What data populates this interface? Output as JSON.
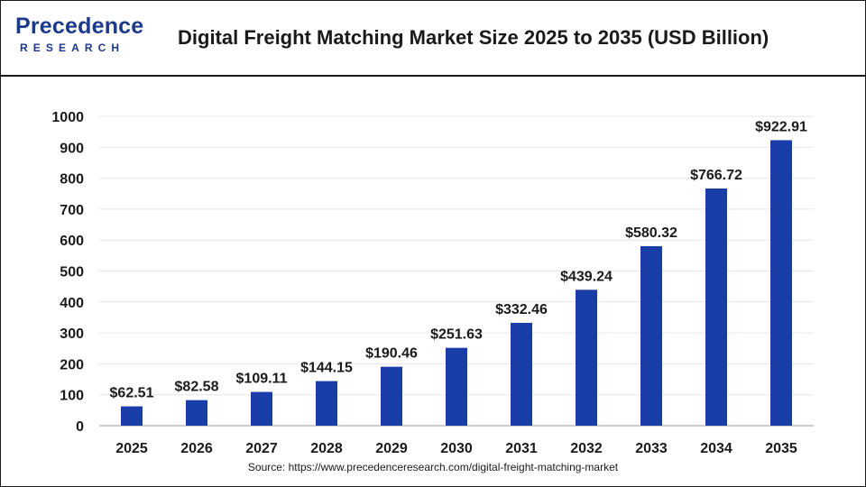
{
  "header": {
    "logo_main": "Precedence",
    "logo_sub": "RESEARCH",
    "title": "Digital Freight Matching Market Size 2025 to 2035 (USD Billion)"
  },
  "chart_data": {
    "type": "bar",
    "title": "Digital Freight Matching Market Size 2025 to 2035 (USD Billion)",
    "xlabel": "",
    "ylabel": "",
    "categories": [
      "2025",
      "2026",
      "2027",
      "2028",
      "2029",
      "2030",
      "2031",
      "2032",
      "2033",
      "2034",
      "2035"
    ],
    "values": [
      62.51,
      82.58,
      109.11,
      144.15,
      190.46,
      251.63,
      332.46,
      439.24,
      580.32,
      766.72,
      922.91
    ],
    "data_labels": [
      "$62.51",
      "$82.58",
      "$109.11",
      "$144.15",
      "$190.46",
      "$251.63",
      "$332.46",
      "$439.24",
      "$580.32",
      "$766.72",
      "$922.91"
    ],
    "ylim": [
      0,
      1000
    ],
    "yticks": [
      0,
      100,
      200,
      300,
      400,
      500,
      600,
      700,
      800,
      900,
      1000
    ],
    "grid": true,
    "bar_color": "#1a3ea8",
    "grid_color": "#e6e6e6"
  },
  "source": "Source: https://www.precedenceresearch.com/digital-freight-matching-market"
}
